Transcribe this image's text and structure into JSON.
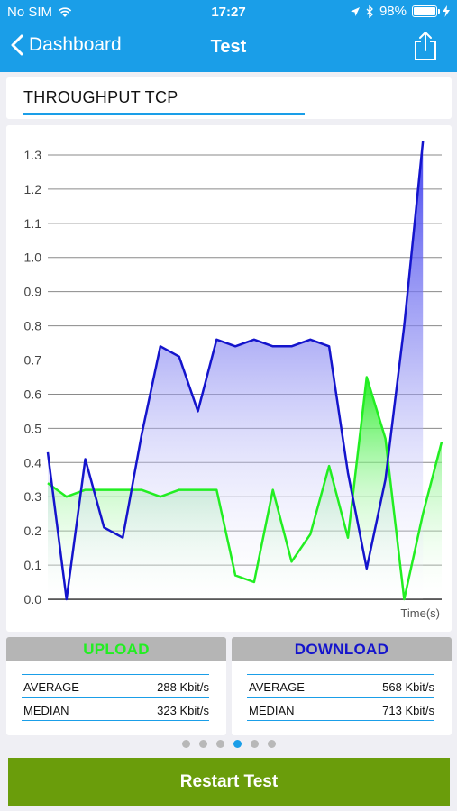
{
  "status_bar": {
    "carrier": "No SIM",
    "time": "17:27",
    "battery": "98%"
  },
  "nav": {
    "back_label": "Dashboard",
    "title": "Test"
  },
  "section": {
    "title": "THROUGHPUT TCP"
  },
  "chart_data": {
    "type": "area",
    "xlabel": "Time(s)",
    "ylabel": "",
    "ylim": [
      0,
      1.35
    ],
    "yticks": [
      "1.3",
      "1.2",
      "1.1",
      "1.0",
      "0.9",
      "0.8",
      "0.7",
      "0.6",
      "0.5",
      "0.4",
      "0.3",
      "0.2",
      "0.1",
      "0.0"
    ],
    "ytick_values": [
      1.3,
      1.2,
      1.1,
      1.0,
      0.9,
      0.8,
      0.7,
      0.6,
      0.5,
      0.4,
      0.3,
      0.2,
      0.1,
      0.0
    ],
    "grid": true,
    "series": [
      {
        "color": "#1414cc",
        "values": [
          0.43,
          0.0,
          0.41,
          0.21,
          0.18,
          0.48,
          0.74,
          0.71,
          0.55,
          0.76,
          0.74,
          0.76,
          0.74,
          0.74,
          0.76,
          0.74,
          0.37,
          0.09,
          0.35,
          0.8,
          1.34
        ]
      },
      {
        "color": "#22ee22",
        "values": [
          0.34,
          0.3,
          0.32,
          0.32,
          0.32,
          0.32,
          0.3,
          0.32,
          0.32,
          0.32,
          0.07,
          0.05,
          0.32,
          0.11,
          0.19,
          0.39,
          0.18,
          0.65,
          0.47,
          0.0,
          0.25,
          0.46
        ]
      }
    ]
  },
  "upload": {
    "title": "UPLOAD",
    "title_color": "#22ee22",
    "average_label": "AVERAGE",
    "average_value": "288 Kbit/s",
    "median_label": "MEDIAN",
    "median_value": "323 Kbit/s"
  },
  "download": {
    "title": "DOWNLOAD",
    "title_color": "#1414cc",
    "average_label": "AVERAGE",
    "average_value": "568 Kbit/s",
    "median_label": "MEDIAN",
    "median_value": "713 Kbit/s"
  },
  "pager": {
    "count": 6,
    "active_index": 3
  },
  "restart_label": "Restart Test",
  "colors": {
    "accent": "#1a9ee8",
    "button": "#6a9d0b"
  }
}
